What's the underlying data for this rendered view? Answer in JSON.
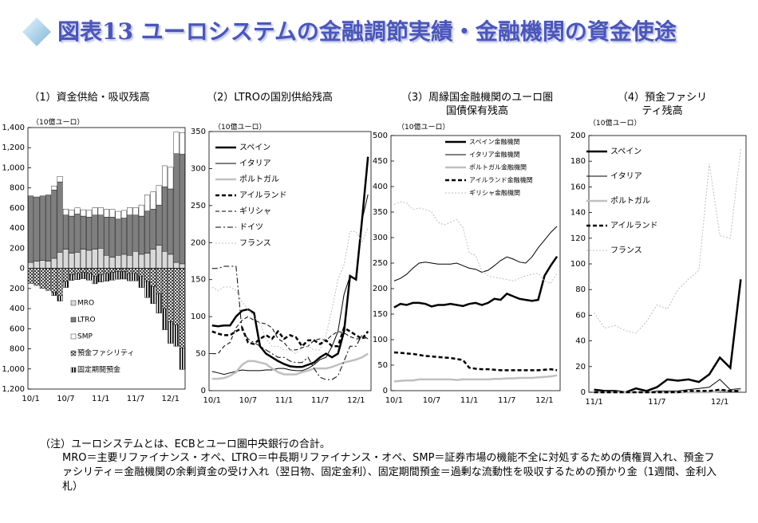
{
  "header": {
    "title": "図表13 ユーロシステムの金融調節実績・金融機関の資金使途"
  },
  "chart_data": [
    {
      "type": "bar",
      "stacked": true,
      "title": "（1）資金供給・吸収残高",
      "unit": "（10億ユーロ）",
      "legend": "lower left",
      "categories": [
        "10/1",
        null,
        null,
        null,
        null,
        null,
        "10/7",
        null,
        null,
        null,
        null,
        null,
        "11/1",
        null,
        null,
        null,
        null,
        null,
        "11/7",
        null,
        null,
        null,
        null,
        null,
        "12/1",
        null,
        null
      ],
      "ylim": [
        -1200,
        1400
      ],
      "yticks": [
        {
          "value": -1200,
          "label": "1,200"
        },
        {
          "value": -1000,
          "label": "1,000"
        },
        {
          "value": -800,
          "label": "800"
        },
        {
          "value": -600,
          "label": "600"
        },
        {
          "value": -400,
          "label": "400"
        },
        {
          "value": -200,
          "label": "200"
        },
        0,
        200,
        400,
        600,
        800,
        {
          "value": 1000,
          "label": "1,000"
        },
        {
          "value": 1200,
          "label": "1,200"
        },
        {
          "value": 1400,
          "label": "1,400"
        }
      ],
      "series": [
        {
          "name": "MRO",
          "color": "#d9d9d9",
          "values": [
            60,
            70,
            80,
            70,
            100,
            160,
            190,
            150,
            160,
            190,
            180,
            190,
            200,
            130,
            110,
            130,
            140,
            130,
            170,
            140,
            150,
            190,
            230,
            170,
            140,
            60,
            45
          ]
        },
        {
          "name": "LTRO",
          "color": "#7f7f7f",
          "values": [
            660,
            640,
            640,
            660,
            680,
            700,
            340,
            370,
            380,
            330,
            330,
            340,
            330,
            380,
            400,
            360,
            360,
            400,
            360,
            380,
            420,
            400,
            400,
            640,
            650,
            1080,
            1090
          ]
        },
        {
          "name": "SMP",
          "color": "#ffffff",
          "values": [
            0,
            0,
            0,
            0,
            40,
            55,
            60,
            60,
            62,
            63,
            67,
            73,
            76,
            77,
            77,
            77,
            76,
            74,
            74,
            110,
            160,
            170,
            195,
            210,
            215,
            215,
            215
          ]
        },
        {
          "name": "預金ファシリティ",
          "color": "#000000",
          "pattern": "crosshatch",
          "values": [
            -150,
            -170,
            -200,
            -220,
            -240,
            -270,
            -130,
            -60,
            -50,
            -40,
            -50,
            -80,
            -60,
            -50,
            -40,
            -30,
            -30,
            -50,
            -50,
            -80,
            -130,
            -180,
            -250,
            -400,
            -530,
            -560,
            -790
          ]
        },
        {
          "name": "固定期間預金",
          "color": "#000000",
          "pattern": "vstripe",
          "values": [
            0,
            0,
            0,
            0,
            -30,
            -55,
            -60,
            -60,
            -62,
            -63,
            -67,
            -73,
            -76,
            -77,
            -77,
            -77,
            -76,
            -74,
            -74,
            -110,
            -160,
            -170,
            -195,
            -210,
            -215,
            -215,
            -215
          ]
        }
      ]
    },
    {
      "type": "line",
      "title": "（2）LTROの国別供給残高",
      "unit": "（10億ユーロ）",
      "legend": "upper left",
      "categories": [
        "10/1",
        null,
        null,
        null,
        null,
        null,
        "10/7",
        null,
        null,
        null,
        null,
        null,
        "11/1",
        null,
        null,
        null,
        null,
        null,
        "11/7",
        null,
        null,
        null,
        null,
        null,
        "12/1",
        null,
        null
      ],
      "ylim": [
        0,
        350
      ],
      "yticks": [
        0,
        50,
        100,
        150,
        200,
        250,
        300,
        350
      ],
      "series": [
        {
          "name": "スペイン",
          "color": "#000000",
          "weight": "bold",
          "dash": "solid",
          "values": [
            88,
            87,
            88,
            88,
            100,
            108,
            110,
            105,
            60,
            50,
            45,
            40,
            36,
            33,
            32,
            32,
            35,
            38,
            45,
            50,
            45,
            50,
            80,
            155,
            150,
            230,
            316
          ]
        },
        {
          "name": "イタリア",
          "color": "#000000",
          "weight": "normal",
          "dash": "solid",
          "values": [
            26,
            24,
            22,
            24,
            26,
            28,
            27,
            27,
            27,
            28,
            28,
            30,
            30,
            28,
            27,
            27,
            30,
            35,
            42,
            45,
            60,
            80,
            130,
            155,
            150,
            230,
            265
          ]
        },
        {
          "name": "ポルトガル",
          "color": "#bfbfbf",
          "weight": "bold",
          "dash": "solid",
          "values": [
            16,
            16,
            17,
            20,
            25,
            35,
            40,
            40,
            38,
            36,
            30,
            25,
            22,
            22,
            22,
            25,
            27,
            30,
            30,
            30,
            32,
            35,
            38,
            40,
            42,
            45,
            50
          ]
        },
        {
          "name": "アイルランド",
          "color": "#000000",
          "weight": "bold",
          "dash": "dashed",
          "values": [
            80,
            77,
            75,
            75,
            80,
            85,
            65,
            63,
            70,
            75,
            70,
            80,
            70,
            75,
            72,
            60,
            68,
            68,
            63,
            68,
            60,
            60,
            85,
            80,
            75,
            70,
            80
          ]
        },
        {
          "name": "ギリシャ",
          "color": "#000000",
          "weight": "normal",
          "dash": "dashed",
          "values": [
            50,
            50,
            60,
            65,
            85,
            95,
            100,
            95,
            92,
            90,
            85,
            70,
            65,
            55,
            55,
            58,
            60,
            68,
            70,
            68,
            75,
            80,
            78,
            73,
            70,
            70,
            72
          ]
        },
        {
          "name": "ドイツ",
          "color": "#000000",
          "weight": "normal",
          "dash": "dashdot",
          "values": [
            165,
            165,
            168,
            168,
            168,
            80,
            70,
            65,
            60,
            55,
            50,
            45,
            45,
            40,
            38,
            38,
            45,
            30,
            18,
            15,
            15,
            20,
            40,
            60,
            60,
            75,
            70
          ]
        },
        {
          "name": "フランス",
          "color": "#bfbfbf",
          "weight": "normal",
          "dash": "dotted",
          "values": [
            140,
            135,
            140,
            140,
            135,
            120,
            110,
            100,
            90,
            70,
            60,
            60,
            55,
            55,
            50,
            60,
            60,
            55,
            55,
            75,
            110,
            150,
            170,
            215,
            215,
            200,
            220
          ]
        }
      ]
    },
    {
      "type": "line",
      "title": "（3）周縁国金融機関のユーロ圏\n国債保有残高",
      "unit": "（10億ユーロ）",
      "legend": "upper left",
      "categories": [
        "10/1",
        null,
        null,
        null,
        null,
        null,
        "10/7",
        null,
        null,
        null,
        null,
        null,
        "11/1",
        null,
        null,
        null,
        null,
        null,
        "11/7",
        null,
        null,
        null,
        null,
        null,
        "12/1",
        null,
        null
      ],
      "ylim": [
        0,
        500
      ],
      "yticks": [
        0,
        50,
        100,
        150,
        200,
        250,
        300,
        350,
        400,
        450,
        500
      ],
      "series": [
        {
          "name": "スペイン金融機関",
          "color": "#000000",
          "weight": "bold",
          "dash": "solid",
          "values": [
            163,
            170,
            168,
            172,
            172,
            170,
            165,
            168,
            168,
            170,
            168,
            166,
            170,
            172,
            168,
            172,
            180,
            178,
            190,
            185,
            180,
            178,
            176,
            178,
            225,
            245,
            263
          ]
        },
        {
          "name": "イタリア金融機関",
          "color": "#000000",
          "weight": "normal",
          "dash": "solid",
          "values": [
            215,
            220,
            228,
            240,
            250,
            252,
            250,
            248,
            248,
            248,
            250,
            245,
            240,
            238,
            232,
            236,
            245,
            255,
            262,
            258,
            252,
            250,
            262,
            280,
            295,
            310,
            322
          ]
        },
        {
          "name": "ポルトガル金融機関",
          "color": "#bfbfbf",
          "weight": "bold",
          "dash": "solid",
          "values": [
            18,
            19,
            20,
            20,
            22,
            22,
            22,
            22,
            22,
            22,
            21,
            22,
            22,
            22,
            22,
            22,
            23,
            23,
            24,
            24,
            25,
            25,
            25,
            26,
            27,
            28,
            30
          ]
        },
        {
          "name": "アイルランド金融機関",
          "color": "#000000",
          "weight": "bold",
          "dash": "dashed",
          "values": [
            75,
            74,
            73,
            72,
            70,
            68,
            67,
            66,
            65,
            64,
            62,
            60,
            45,
            43,
            42,
            42,
            41,
            40,
            40,
            40,
            40,
            40,
            40,
            40,
            41,
            42,
            40
          ]
        },
        {
          "name": "ギリシャ金融機関",
          "color": "#bfbfbf",
          "weight": "normal",
          "dash": "dotted",
          "values": [
            365,
            370,
            368,
            355,
            358,
            355,
            350,
            330,
            325,
            330,
            335,
            320,
            270,
            265,
            235,
            225,
            222,
            220,
            218,
            215,
            220,
            225,
            228,
            230,
            215,
            210,
            230
          ]
        }
      ]
    },
    {
      "type": "line",
      "title": "（4）預金ファシリティ残高",
      "unit": "（10億ユーロ）",
      "legend": "upper left",
      "categories": [
        "11/1",
        null,
        null,
        null,
        null,
        null,
        "11/7",
        null,
        null,
        null,
        null,
        null,
        "12/1",
        null,
        null
      ],
      "ylim": [
        0,
        200
      ],
      "yticks": [
        0,
        20,
        40,
        60,
        80,
        100,
        120,
        140,
        160,
        180,
        200
      ],
      "series": [
        {
          "name": "スペイン",
          "color": "#000000",
          "weight": "bold",
          "dash": "solid",
          "values": [
            2,
            1,
            1,
            0,
            3,
            1,
            4,
            10,
            9,
            10,
            8,
            14,
            27,
            19,
            88
          ]
        },
        {
          "name": "イタリア",
          "color": "#000000",
          "weight": "normal",
          "dash": "solid",
          "values": [
            0,
            0,
            0,
            0,
            0,
            0,
            1,
            1,
            1,
            2,
            3,
            4,
            10,
            2,
            3
          ]
        },
        {
          "name": "ポルトガル",
          "color": "#bfbfbf",
          "weight": "bold",
          "dash": "solid",
          "values": [
            0,
            0,
            0,
            0,
            0,
            0,
            0,
            0,
            0,
            0,
            0,
            0,
            1,
            1,
            2
          ]
        },
        {
          "name": "アイルランド",
          "color": "#000000",
          "weight": "bold",
          "dash": "dashed",
          "values": [
            0,
            0,
            0,
            0,
            0,
            0,
            0,
            0,
            0,
            1,
            1,
            1,
            2,
            1,
            1
          ]
        },
        {
          "name": "フランス",
          "color": "#bfbfbf",
          "weight": "normal",
          "dash": "dotted",
          "values": [
            62,
            50,
            52,
            48,
            46,
            55,
            68,
            65,
            80,
            88,
            95,
            178,
            122,
            120,
            190
          ]
        }
      ]
    }
  ],
  "notes": [
    "（注）ユーロシステムとは、ECBとユーロ圏中央銀行の合計。",
    "MRO＝主要リファイナンス・オペ、LTRO＝中長期リファイナンス・オペ、SMP＝証券市場の機能不全に対処するための債権買入れ、預金ファシリティ＝金融機関の余剰資金の受け入れ（翌日物、固定金利）、固定期間預金＝過剰な流動性を吸収するための預かり金（1週間、金利入札）"
  ]
}
